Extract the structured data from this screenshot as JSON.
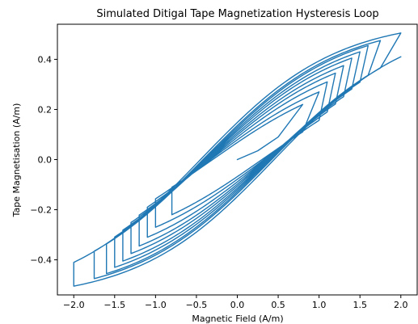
{
  "chart_data": {
    "type": "line",
    "title": "Simulated Ditigal Tape Magnetization Hysteresis Loop",
    "xlabel": "Magnetic Field (A/m)",
    "ylabel": "Tape Magnetisation (A/m)",
    "xlim": [
      -2.2,
      2.2
    ],
    "ylim": [
      -0.54,
      0.54
    ],
    "xticks": [
      -2.0,
      -1.5,
      -1.0,
      -0.5,
      0.0,
      0.5,
      1.0,
      1.5,
      2.0
    ],
    "xtick_labels": [
      "−2.0",
      "−1.5",
      "−1.0",
      "−0.5",
      "0.0",
      "0.5",
      "1.0",
      "1.5",
      "2.0"
    ],
    "yticks": [
      -0.4,
      -0.2,
      0.0,
      0.2,
      0.4
    ],
    "ytick_labels": [
      "−0.4",
      "−0.2",
      "0.0",
      "0.2",
      "0.4"
    ],
    "grid": false,
    "legend": "none",
    "line_color": "#1f77b4",
    "series": [
      {
        "description_of_shape": "initial magnetization curve from origin followed by growing minor loops",
        "initial_curve": {
          "x": [
            0.0,
            0.25,
            0.5,
            0.8
          ],
          "y": [
            0.0,
            0.035,
            0.09,
            0.22
          ]
        },
        "loops": [
          {
            "h_max": 0.8,
            "m_max": 0.22
          },
          {
            "h_max": 1.0,
            "m_max": 0.27
          },
          {
            "h_max": 1.1,
            "m_max": 0.31
          },
          {
            "h_max": 1.2,
            "m_max": 0.345
          },
          {
            "h_max": 1.3,
            "m_max": 0.375
          },
          {
            "h_max": 1.4,
            "m_max": 0.405
          },
          {
            "h_max": 1.5,
            "m_max": 0.43
          },
          {
            "h_max": 1.6,
            "m_max": 0.455
          },
          {
            "h_max": 1.75,
            "m_max": 0.475
          },
          {
            "h_max": 2.0,
            "m_max": 0.505
          }
        ],
        "coercivity_major": 0.45
      }
    ]
  }
}
